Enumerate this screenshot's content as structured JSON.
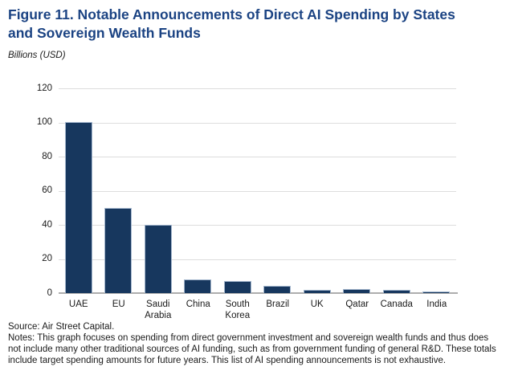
{
  "figure": {
    "title": "Figure 11. Notable Announcements of Direct AI Spending by States and Sovereign Wealth Funds",
    "axis_title": "Billions (USD)",
    "source": "Source: Air Street Capital.",
    "notes": "Notes: This graph focuses on spending from direct government investment and sovereign wealth funds and thus does not include many other traditional sources of AI funding, such as from government funding of general R&D. These totals include target spending amounts for future years. This list of AI spending announcements is not exhaustive."
  },
  "colors": {
    "title_text": "#1b4383",
    "bar_fill": "#17375e",
    "bar_border": "#a2b5cc",
    "gridline": "#dddddd",
    "axis_line": "#adadad",
    "body_text": "#1a1a1a"
  },
  "chart_data": {
    "type": "bar",
    "title": "Figure 11. Notable Announcements of Direct AI Spending by States and Sovereign Wealth Funds",
    "xlabel": "",
    "ylabel": "Billions (USD)",
    "categories": [
      "UAE",
      "EU",
      "Saudi Arabia",
      "China",
      "South Korea",
      "Brazil",
      "UK",
      "Qatar",
      "Canada",
      "India"
    ],
    "values": [
      100,
      50,
      40,
      8,
      7,
      4,
      2,
      2.5,
      2,
      1
    ],
    "ylim": [
      0,
      120
    ],
    "yticks": [
      0,
      20,
      40,
      60,
      80,
      100,
      120
    ],
    "grid": true,
    "legend_position": "none"
  }
}
